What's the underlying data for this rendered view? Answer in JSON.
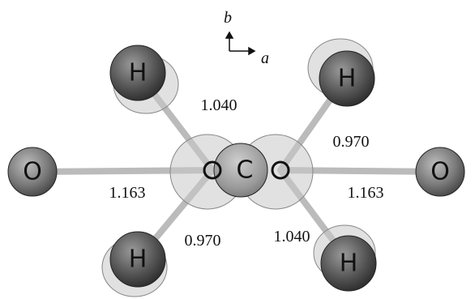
{
  "atoms": [
    {
      "label": "H"
    },
    {
      "label": "H"
    },
    {
      "label": "O"
    },
    {
      "label": "C"
    },
    {
      "label": "O"
    },
    {
      "label": "H"
    },
    {
      "label": "H"
    }
  ],
  "bond_lengths": [
    "1.040",
    "0.970",
    "1.163",
    "1.163",
    "0.970",
    "1.040"
  ],
  "axes": {
    "vertical": "b",
    "horizontal": "a"
  }
}
